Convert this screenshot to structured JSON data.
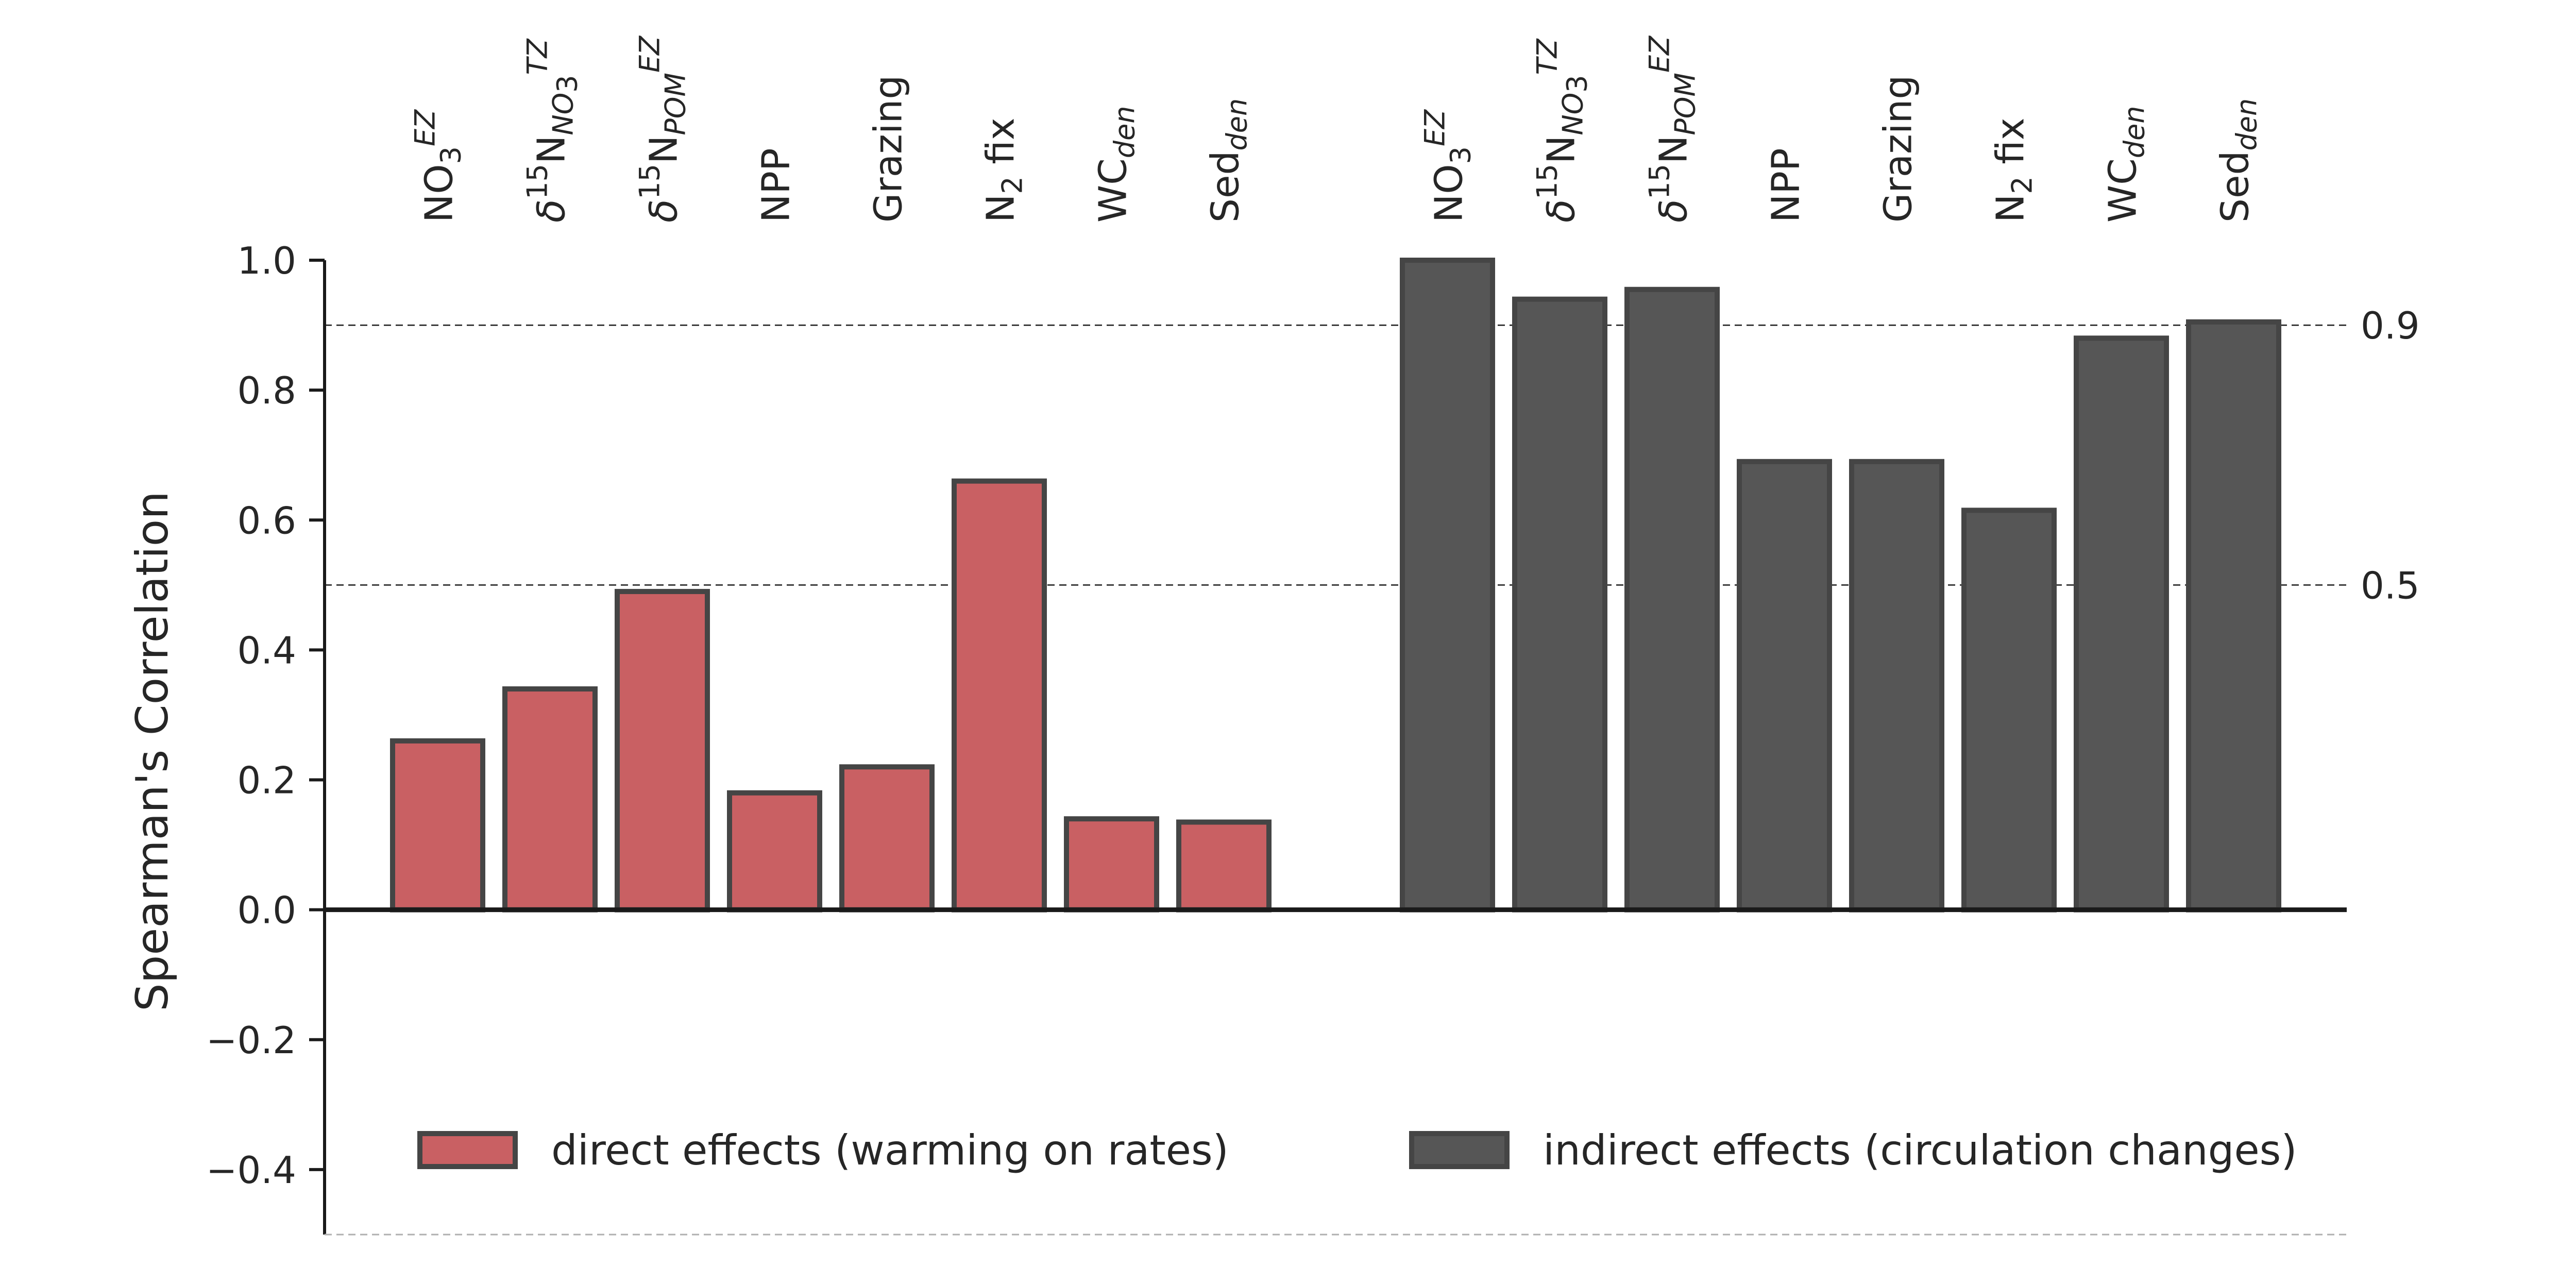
{
  "chart_data": {
    "type": "bar",
    "ylabel": "Spearman's Correlation",
    "ylim": [
      -0.5,
      1.0
    ],
    "yticks": [
      -0.4,
      -0.2,
      0.0,
      0.2,
      0.4,
      0.6,
      0.8,
      1.0
    ],
    "ytick_labels": [
      "−0.4",
      "−0.2",
      "0.0",
      "0.2",
      "0.4",
      "0.6",
      "0.8",
      "1.0"
    ],
    "reference_lines": [
      {
        "value": 0.9,
        "label": "0.9"
      },
      {
        "value": 0.5,
        "label": "0.5"
      }
    ],
    "category_labels": [
      {
        "id": "no3",
        "parts": [
          [
            "NO",
            "n"
          ],
          [
            "3",
            "sub"
          ],
          [
            "EZ",
            "sup-i"
          ]
        ]
      },
      {
        "id": "d15n_no3",
        "parts": [
          [
            "δ",
            "i"
          ],
          [
            "15",
            "sup"
          ],
          [
            "N",
            "n"
          ],
          [
            "NO",
            "sub-i"
          ],
          [
            "3",
            "sub-small"
          ],
          [
            "TZ",
            "sup-i"
          ]
        ]
      },
      {
        "id": "d15n_pom",
        "parts": [
          [
            "δ",
            "i"
          ],
          [
            "15",
            "sup"
          ],
          [
            "N",
            "n"
          ],
          [
            "POM",
            "sub-i"
          ],
          [
            "EZ",
            "sup-i"
          ]
        ]
      },
      {
        "id": "npp",
        "parts": [
          [
            "NPP",
            "n"
          ]
        ]
      },
      {
        "id": "grazing",
        "parts": [
          [
            "Grazing",
            "n"
          ]
        ]
      },
      {
        "id": "n2fix",
        "parts": [
          [
            "N",
            "n"
          ],
          [
            "2",
            "sub"
          ],
          [
            " fix",
            "n"
          ]
        ]
      },
      {
        "id": "wcden",
        "parts": [
          [
            "WC",
            "n"
          ],
          [
            "den",
            "sub-i"
          ]
        ]
      },
      {
        "id": "sedden",
        "parts": [
          [
            "Sed",
            "n"
          ],
          [
            "den",
            "sub-i"
          ]
        ]
      }
    ],
    "series": [
      {
        "name": "direct effects (warming on rates)",
        "color": "#c96063",
        "values": [
          0.26,
          0.34,
          0.49,
          0.18,
          0.22,
          0.66,
          0.14,
          0.135
        ]
      },
      {
        "name": "indirect effects (circulation changes)",
        "color": "#565656",
        "values": [
          1.0,
          0.94,
          0.955,
          0.69,
          0.69,
          0.615,
          0.88,
          0.905
        ]
      }
    ]
  }
}
